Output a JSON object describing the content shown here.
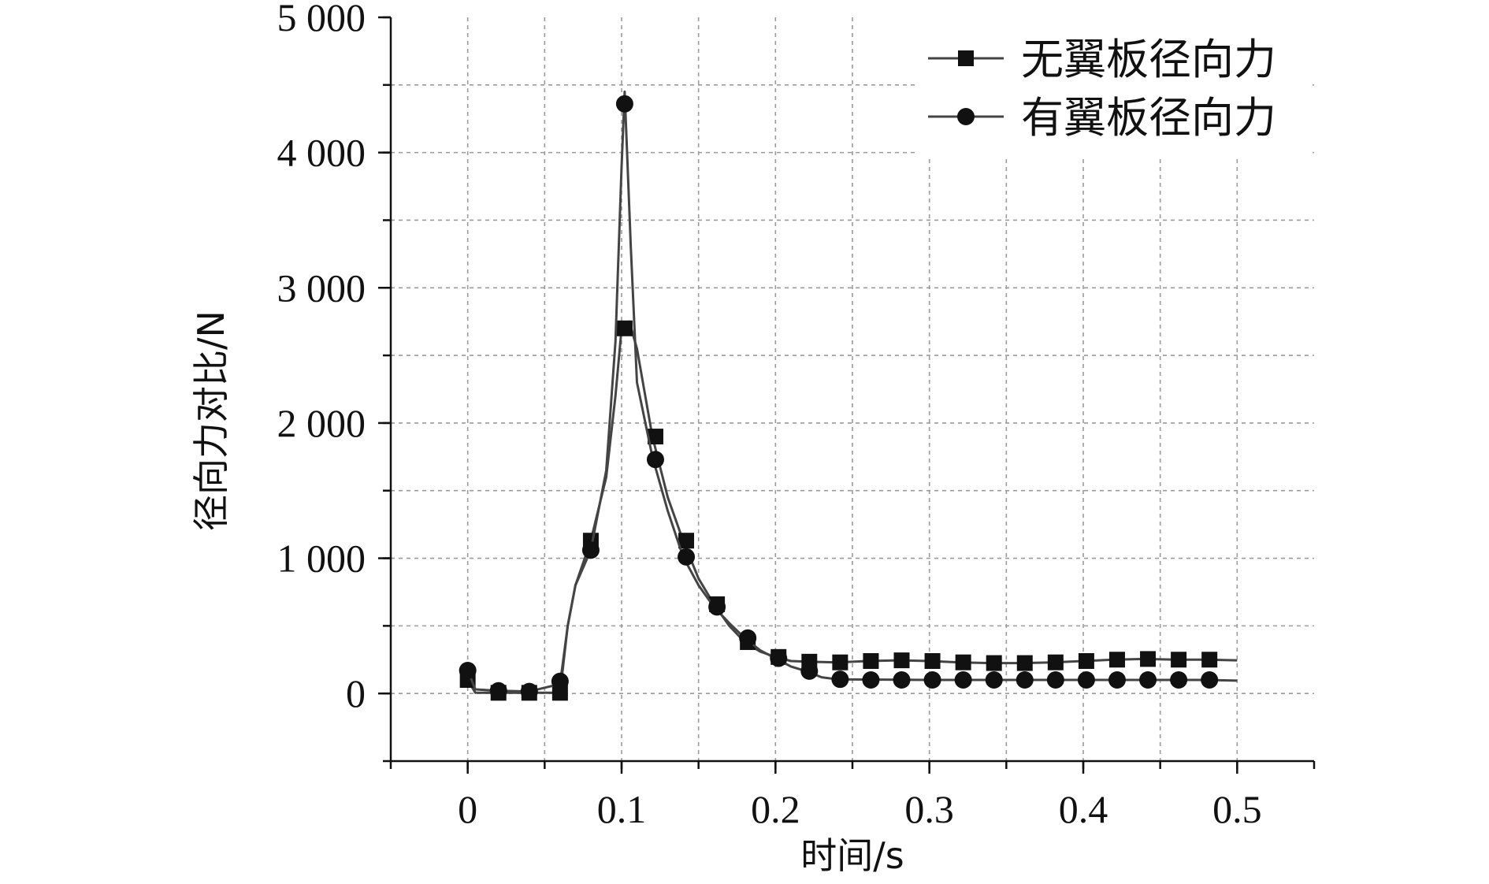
{
  "chart_data": {
    "type": "line",
    "xlabel": "时间/s",
    "ylabel": "径向力对比/N",
    "xlim": [
      -0.05,
      0.55
    ],
    "ylim": [
      -500,
      5000
    ],
    "x_ticks": [
      0,
      0.1,
      0.2,
      0.3,
      0.4,
      0.5
    ],
    "x_tick_labels": [
      "0",
      "0.1",
      "0.2",
      "0.3",
      "0.4",
      "0.5"
    ],
    "y_ticks": [
      0,
      1000,
      2000,
      3000,
      4000,
      5000
    ],
    "y_tick_labels": [
      "0",
      "1 000",
      "2 000",
      "3 000",
      "4 000",
      "5 000"
    ],
    "grid": true,
    "legend_position": "top-right",
    "series": [
      {
        "name": "无翼板径向力",
        "marker": "square",
        "color": "#111111",
        "line_color": "#444444",
        "line": [
          [
            0,
            100
          ],
          [
            0.005,
            5
          ],
          [
            0.02,
            5
          ],
          [
            0.04,
            5
          ],
          [
            0.06,
            5
          ],
          [
            0.065,
            500
          ],
          [
            0.07,
            800
          ],
          [
            0.08,
            1130
          ],
          [
            0.09,
            1600
          ],
          [
            0.096,
            2200
          ],
          [
            0.1,
            2700
          ],
          [
            0.105,
            2750
          ],
          [
            0.11,
            2550
          ],
          [
            0.12,
            1900
          ],
          [
            0.13,
            1450
          ],
          [
            0.14,
            1130
          ],
          [
            0.15,
            850
          ],
          [
            0.16,
            660
          ],
          [
            0.17,
            500
          ],
          [
            0.18,
            380
          ],
          [
            0.19,
            310
          ],
          [
            0.2,
            270
          ],
          [
            0.21,
            240
          ],
          [
            0.22,
            235
          ],
          [
            0.24,
            230
          ],
          [
            0.26,
            240
          ],
          [
            0.28,
            245
          ],
          [
            0.3,
            240
          ],
          [
            0.32,
            230
          ],
          [
            0.34,
            225
          ],
          [
            0.36,
            225
          ],
          [
            0.38,
            230
          ],
          [
            0.4,
            240
          ],
          [
            0.42,
            250
          ],
          [
            0.44,
            255
          ],
          [
            0.46,
            250
          ],
          [
            0.48,
            250
          ],
          [
            0.5,
            245
          ]
        ],
        "points": [
          [
            0,
            100
          ],
          [
            0.02,
            5
          ],
          [
            0.04,
            5
          ],
          [
            0.06,
            5
          ],
          [
            0.08,
            1130
          ],
          [
            0.102,
            2700
          ],
          [
            0.122,
            1900
          ],
          [
            0.142,
            1130
          ],
          [
            0.162,
            660
          ],
          [
            0.182,
            380
          ],
          [
            0.202,
            270
          ],
          [
            0.222,
            235
          ],
          [
            0.242,
            230
          ],
          [
            0.262,
            240
          ],
          [
            0.282,
            245
          ],
          [
            0.302,
            240
          ],
          [
            0.322,
            230
          ],
          [
            0.342,
            225
          ],
          [
            0.362,
            225
          ],
          [
            0.382,
            230
          ],
          [
            0.402,
            240
          ],
          [
            0.422,
            250
          ],
          [
            0.442,
            255
          ],
          [
            0.462,
            250
          ],
          [
            0.482,
            250
          ]
        ]
      },
      {
        "name": "有翼板径向力",
        "marker": "circle",
        "color": "#111111",
        "line_color": "#444444",
        "line": [
          [
            0,
            170
          ],
          [
            0.005,
            30
          ],
          [
            0.02,
            20
          ],
          [
            0.04,
            15
          ],
          [
            0.06,
            70
          ],
          [
            0.065,
            500
          ],
          [
            0.07,
            800
          ],
          [
            0.08,
            1060
          ],
          [
            0.09,
            1650
          ],
          [
            0.096,
            2600
          ],
          [
            0.1,
            3900
          ],
          [
            0.102,
            4450
          ],
          [
            0.106,
            3300
          ],
          [
            0.11,
            2300
          ],
          [
            0.12,
            1750
          ],
          [
            0.13,
            1350
          ],
          [
            0.14,
            1010
          ],
          [
            0.15,
            800
          ],
          [
            0.16,
            640
          ],
          [
            0.17,
            520
          ],
          [
            0.18,
            410
          ],
          [
            0.19,
            320
          ],
          [
            0.2,
            260
          ],
          [
            0.21,
            200
          ],
          [
            0.22,
            165
          ],
          [
            0.23,
            120
          ],
          [
            0.24,
            105
          ],
          [
            0.3,
            100
          ],
          [
            0.4,
            100
          ],
          [
            0.48,
            100
          ],
          [
            0.5,
            95
          ]
        ],
        "points": [
          [
            0,
            170
          ],
          [
            0.02,
            20
          ],
          [
            0.04,
            15
          ],
          [
            0.06,
            90
          ],
          [
            0.08,
            1060
          ],
          [
            0.102,
            4360
          ],
          [
            0.122,
            1730
          ],
          [
            0.142,
            1010
          ],
          [
            0.162,
            640
          ],
          [
            0.182,
            410
          ],
          [
            0.202,
            260
          ],
          [
            0.222,
            165
          ],
          [
            0.242,
            105
          ],
          [
            0.262,
            100
          ],
          [
            0.282,
            100
          ],
          [
            0.302,
            100
          ],
          [
            0.322,
            100
          ],
          [
            0.342,
            100
          ],
          [
            0.362,
            100
          ],
          [
            0.382,
            100
          ],
          [
            0.402,
            100
          ],
          [
            0.422,
            100
          ],
          [
            0.442,
            100
          ],
          [
            0.462,
            100
          ],
          [
            0.482,
            100
          ]
        ]
      }
    ]
  }
}
